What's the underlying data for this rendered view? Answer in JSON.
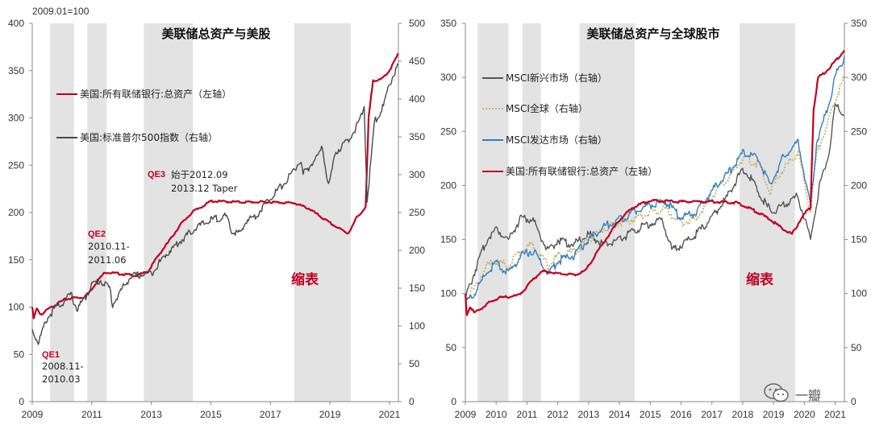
{
  "watermark": {
    "text": "一瓣"
  },
  "chart_data": [
    {
      "type": "line",
      "title": "美联储总资产与美股",
      "index_note": "2009.01=100",
      "x_ticks": [
        "2009",
        "2011",
        "2013",
        "2015",
        "2017",
        "2019",
        "2021"
      ],
      "x_range": [
        2009,
        2021.3
      ],
      "y_left_ticks": [
        "0",
        "50",
        "100",
        "150",
        "200",
        "250",
        "300",
        "350",
        "400"
      ],
      "y_left_range": [
        0,
        400
      ],
      "y_right_ticks": [
        "0",
        "50",
        "100",
        "150",
        "200",
        "250",
        "300",
        "350",
        "400",
        "450",
        "500"
      ],
      "y_right_range": [
        0,
        500
      ],
      "shaded_periods": [
        [
          2009.6,
          2010.4
        ],
        [
          2010.85,
          2011.5
        ],
        [
          2012.75,
          2014.4
        ],
        [
          2017.8,
          2019.7
        ]
      ],
      "legend": [
        {
          "label": "美国:所有联储银行:总资产（左轴）",
          "color": "#c0001f"
        },
        {
          "label": "美国:标准普尔500指数（右轴）",
          "color": "#4a4a4a"
        }
      ],
      "annotations": [
        {
          "tag": "QE1",
          "lines": [
            "2008.11-",
            "2010.03"
          ]
        },
        {
          "tag": "QE2",
          "lines": [
            "2010.11-",
            "2011.06"
          ]
        },
        {
          "tag": "QE3",
          "lines": [
            "始于2012.09",
            "2013.12 Taper"
          ]
        },
        {
          "tag": "",
          "lines": [
            "缩表"
          ]
        }
      ],
      "series": [
        {
          "name": "美国:所有联储银行:总资产（左轴）",
          "axis": "left",
          "color": "#c0001f",
          "x": [
            2009,
            2009.05,
            2009.15,
            2009.3,
            2009.5,
            2009.8,
            2010.1,
            2010.4,
            2010.7,
            2010.9,
            2011.2,
            2011.45,
            2011.7,
            2012.0,
            2012.5,
            2012.9,
            2013.2,
            2013.6,
            2014.0,
            2014.4,
            2014.8,
            2015.0,
            2016.0,
            2017.0,
            2017.8,
            2018.3,
            2018.8,
            2019.2,
            2019.6,
            2019.75,
            2019.9,
            2020.05,
            2020.2,
            2020.3,
            2020.45,
            2020.7,
            2021.0,
            2021.3
          ],
          "y": [
            100,
            88,
            98,
            92,
            97,
            103,
            108,
            110,
            110,
            115,
            128,
            137,
            136,
            135,
            133,
            138,
            153,
            170,
            188,
            201,
            208,
            212,
            211,
            211,
            210,
            204,
            193,
            185,
            178,
            185,
            195,
            200,
            205,
            300,
            340,
            340,
            350,
            368
          ]
        },
        {
          "name": "美国:标准普尔500指数（右轴）",
          "axis": "right",
          "color": "#4a4a4a",
          "x": [
            2009,
            2009.2,
            2009.5,
            2009.8,
            2010.0,
            2010.3,
            2010.5,
            2010.8,
            2011.0,
            2011.3,
            2011.6,
            2011.7,
            2012.0,
            2012.3,
            2012.7,
            2013.0,
            2013.5,
            2014.0,
            2014.5,
            2015.0,
            2015.5,
            2015.7,
            2016.0,
            2016.2,
            2016.5,
            2017.0,
            2017.5,
            2018.0,
            2018.1,
            2018.5,
            2018.75,
            2018.95,
            2019.2,
            2019.6,
            2020.0,
            2020.15,
            2020.25,
            2020.5,
            2020.8,
            2021.0,
            2021.3
          ],
          "y": [
            95,
            78,
            110,
            125,
            130,
            142,
            122,
            138,
            155,
            160,
            150,
            128,
            148,
            165,
            168,
            170,
            195,
            213,
            230,
            240,
            245,
            225,
            222,
            240,
            245,
            270,
            290,
            318,
            300,
            320,
            335,
            285,
            330,
            345,
            370,
            390,
            265,
            370,
            390,
            420,
            445
          ]
        }
      ]
    },
    {
      "type": "line",
      "title": "美联储总资产与全球股市",
      "x_ticks": [
        "2009",
        "2010",
        "2011",
        "2012",
        "2013",
        "2014",
        "2015",
        "2016",
        "2017",
        "2018",
        "2019",
        "2020",
        "2021"
      ],
      "x_range": [
        2009,
        2021.3
      ],
      "y_left_ticks": [
        "0",
        "50",
        "100",
        "150",
        "200",
        "250",
        "300",
        "350"
      ],
      "y_left_range": [
        0,
        350
      ],
      "y_right_ticks": [
        "0",
        "50",
        "100",
        "150",
        "200",
        "250",
        "300",
        "350"
      ],
      "y_right_range": [
        0,
        350
      ],
      "shaded_periods": [
        [
          2009.4,
          2010.4
        ],
        [
          2010.85,
          2011.45
        ],
        [
          2012.7,
          2014.5
        ],
        [
          2017.9,
          2019.7
        ]
      ],
      "legend": [
        {
          "label": "MSCI新兴市场（右轴）",
          "color": "#555555"
        },
        {
          "label": "MSCI全球（右轴）",
          "color": "#c9b068"
        },
        {
          "label": "MSCI发达市场（右轴）",
          "color": "#2f7fc1"
        },
        {
          "label": "美国:所有联储银行:总资产（左轴）",
          "color": "#c0001f"
        }
      ],
      "annotations": [
        {
          "tag": "",
          "lines": [
            "缩表"
          ]
        }
      ],
      "series": [
        {
          "name": "MSCI新兴市场（右轴）",
          "axis": "right",
          "color": "#555555",
          "x": [
            2009,
            2009.3,
            2009.7,
            2010.0,
            2010.4,
            2010.8,
            2011.2,
            2011.7,
            2012.0,
            2012.5,
            2013.0,
            2013.5,
            2014.0,
            2014.6,
            2015.0,
            2015.4,
            2015.7,
            2016.0,
            2016.5,
            2017.0,
            2017.5,
            2018.0,
            2018.3,
            2018.8,
            2019.0,
            2019.5,
            2019.8,
            2020.2,
            2020.5,
            2020.8,
            2021.0,
            2021.3
          ],
          "y": [
            95,
            120,
            150,
            160,
            150,
            170,
            168,
            138,
            150,
            145,
            155,
            145,
            150,
            160,
            165,
            168,
            140,
            145,
            155,
            170,
            190,
            215,
            205,
            180,
            175,
            185,
            190,
            150,
            200,
            230,
            275,
            265
          ]
        },
        {
          "name": "MSCI全球（右轴）",
          "axis": "right",
          "color": "#c9b068",
          "x": [
            2009,
            2009.3,
            2009.7,
            2010.0,
            2010.4,
            2010.8,
            2011.2,
            2011.7,
            2012.0,
            2012.5,
            2013.0,
            2013.5,
            2014.0,
            2014.6,
            2015.0,
            2015.5,
            2016.0,
            2016.5,
            2017.0,
            2017.5,
            2018.0,
            2018.5,
            2018.9,
            2019.3,
            2019.8,
            2020.2,
            2020.4,
            2020.8,
            2021.0,
            2021.3
          ],
          "y": [
            95,
            105,
            125,
            130,
            125,
            140,
            145,
            125,
            135,
            138,
            150,
            160,
            165,
            170,
            175,
            178,
            165,
            170,
            190,
            205,
            225,
            220,
            195,
            215,
            230,
            175,
            230,
            260,
            280,
            300
          ]
        },
        {
          "name": "MSCI发达市场（右轴）",
          "axis": "right",
          "color": "#2f7fc1",
          "x": [
            2009,
            2009.3,
            2009.7,
            2010.0,
            2010.4,
            2010.8,
            2011.2,
            2011.7,
            2012.0,
            2012.5,
            2013.0,
            2013.5,
            2014.0,
            2014.6,
            2015.0,
            2015.5,
            2016.0,
            2016.5,
            2017.0,
            2017.5,
            2018.0,
            2018.5,
            2018.9,
            2019.3,
            2019.8,
            2020.2,
            2020.4,
            2020.8,
            2021.0,
            2021.3
          ],
          "y": [
            92,
            100,
            120,
            128,
            118,
            135,
            140,
            118,
            130,
            135,
            150,
            162,
            168,
            178,
            182,
            185,
            170,
            175,
            195,
            210,
            230,
            225,
            200,
            225,
            240,
            180,
            240,
            275,
            300,
            320
          ]
        },
        {
          "name": "美国:所有联储银行:总资产（左轴）",
          "axis": "left",
          "color": "#c0001f",
          "x": [
            2009,
            2009.05,
            2009.15,
            2009.3,
            2009.5,
            2009.8,
            2010.1,
            2010.4,
            2010.7,
            2010.9,
            2011.2,
            2011.45,
            2011.7,
            2012.0,
            2012.5,
            2012.9,
            2013.2,
            2013.6,
            2014.0,
            2014.4,
            2014.8,
            2015.0,
            2016.0,
            2017.0,
            2017.8,
            2018.3,
            2018.8,
            2019.2,
            2019.6,
            2019.75,
            2019.9,
            2020.05,
            2020.2,
            2020.3,
            2020.45,
            2020.7,
            2021.0,
            2021.3
          ],
          "y": [
            100,
            80,
            88,
            82,
            86,
            92,
            96,
            97,
            98,
            103,
            113,
            120,
            120,
            119,
            117,
            121,
            135,
            152,
            168,
            179,
            184,
            186,
            185,
            185,
            184,
            178,
            170,
            162,
            155,
            162,
            170,
            175,
            180,
            270,
            300,
            305,
            315,
            325
          ]
        }
      ]
    }
  ]
}
